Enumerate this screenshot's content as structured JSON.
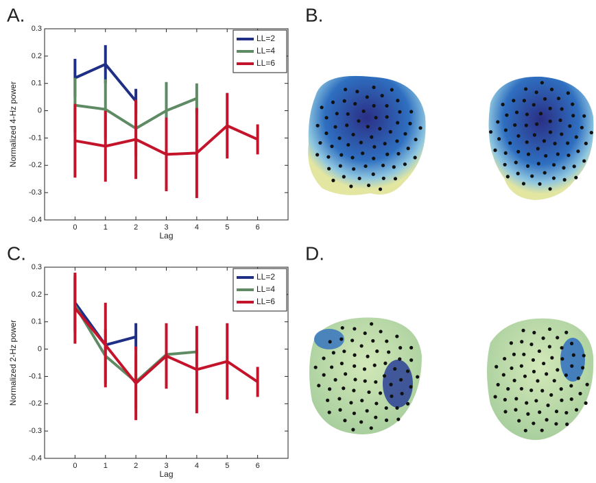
{
  "panel_labels": [
    "A.",
    "B.",
    "C.",
    "D."
  ],
  "chart_data": [
    {
      "type": "line",
      "ylabel": "Normalized 4-Hz power",
      "xlabel": "Lag",
      "x": [
        0,
        1,
        2,
        3,
        4,
        5,
        6
      ],
      "xlim": [
        -1,
        7
      ],
      "xticks": [
        0,
        1,
        2,
        3,
        4,
        5,
        6
      ],
      "ylim": [
        -0.4,
        0.3
      ],
      "yticks": [
        -0.4,
        -0.3,
        -0.2,
        -0.1,
        0,
        0.1,
        0.2,
        0.3
      ],
      "legend": "upper right",
      "series": [
        {
          "name": "LL=2",
          "color": "#1f2f86",
          "values": [
            0.12,
            0.17,
            0.035,
            null,
            null,
            null,
            null
          ],
          "errors": [
            0.07,
            0.07,
            0.045,
            null,
            null,
            null,
            null
          ]
        },
        {
          "name": "LL=4",
          "color": "#5e8a64",
          "values": [
            0.02,
            0.005,
            -0.065,
            0.0,
            0.045,
            null,
            null
          ],
          "errors": [
            0.1,
            0.11,
            0.1,
            0.105,
            0.055,
            null,
            null
          ]
        },
        {
          "name": "LL=6",
          "color": "#c4142c",
          "values": [
            -0.11,
            -0.13,
            -0.105,
            -0.16,
            -0.155,
            -0.055,
            -0.105
          ],
          "errors": [
            0.135,
            0.13,
            0.145,
            0.135,
            0.165,
            0.12,
            0.055
          ]
        }
      ]
    },
    {
      "type": "line",
      "ylabel": "Normalized 2-Hz power",
      "xlabel": "Lag",
      "x": [
        0,
        1,
        2,
        3,
        4,
        5,
        6
      ],
      "xlim": [
        -1,
        7
      ],
      "xticks": [
        0,
        1,
        2,
        3,
        4,
        5,
        6
      ],
      "ylim": [
        -0.4,
        0.3
      ],
      "yticks": [
        -0.4,
        -0.3,
        -0.2,
        -0.1,
        0,
        0.1,
        0.2,
        0.3
      ],
      "legend": "upper right",
      "series": [
        {
          "name": "LL=2",
          "color": "#1f2f86",
          "values": [
            0.17,
            0.015,
            0.045,
            null,
            null,
            null,
            null
          ],
          "errors": [
            0.1,
            0.02,
            0.05,
            null,
            null,
            null,
            null
          ]
        },
        {
          "name": "LL=4",
          "color": "#5e8a64",
          "values": [
            0.16,
            -0.025,
            -0.12,
            -0.02,
            -0.01,
            null,
            null
          ],
          "errors": [
            0.1,
            0.1,
            0.1,
            0.01,
            0.01,
            null,
            null
          ]
        },
        {
          "name": "LL=6",
          "color": "#c4142c",
          "values": [
            0.15,
            0.015,
            -0.125,
            -0.025,
            -0.075,
            -0.045,
            -0.12
          ],
          "errors": [
            0.13,
            0.155,
            0.135,
            0.12,
            0.16,
            0.14,
            0.055
          ]
        }
      ]
    }
  ]
}
